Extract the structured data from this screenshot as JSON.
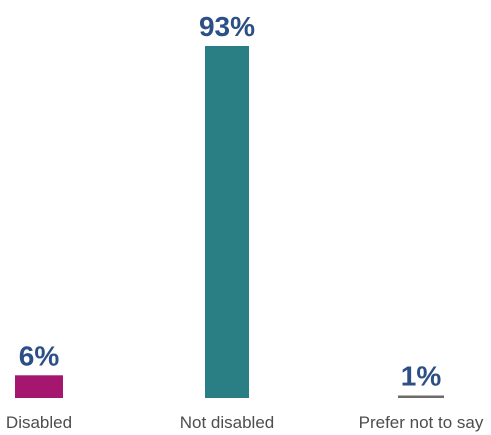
{
  "chart_data": {
    "type": "bar",
    "categories": [
      "Disabled",
      "Not disabled",
      "Prefer not to say"
    ],
    "values": [
      6,
      93,
      1
    ],
    "data_labels": [
      "6%",
      "93%",
      "1%"
    ],
    "ylim": [
      0,
      93
    ],
    "colors": [
      "#a5176e",
      "#2a7f84",
      "#6b6b6b"
    ],
    "label_color": "#2c4f86",
    "category_label_color": "#4d4d4d",
    "grid": false,
    "legend": "none"
  }
}
